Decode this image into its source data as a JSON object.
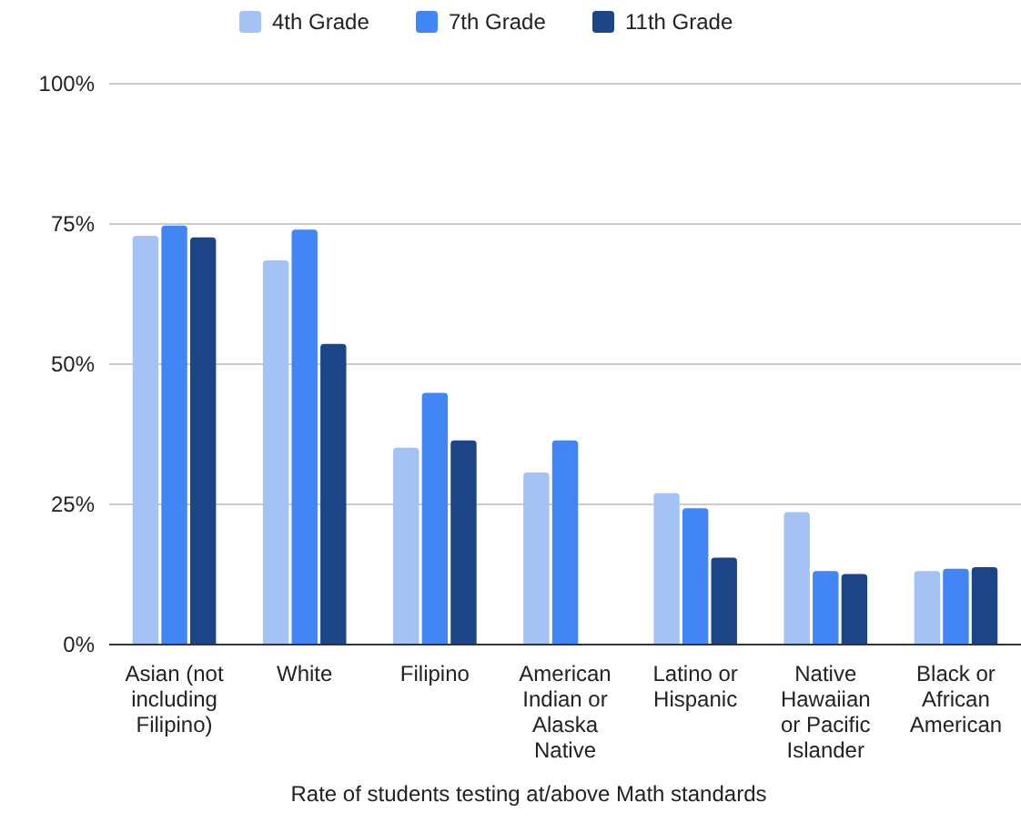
{
  "chart_data": {
    "type": "bar",
    "xlabel": "Rate of students testing at/above Math standards",
    "categories": [
      "Asian (not including Filipino)",
      "White",
      "Filipino",
      "American Indian or Alaska Native",
      "Latino or Hispanic",
      "Native Hawaiian or Pacific Islander",
      "Black or African American"
    ],
    "series": [
      {
        "name": "4th Grade",
        "color": "#a4c2f4",
        "values": [
          72.9,
          68.5,
          35.1,
          30.7,
          27,
          23.6,
          13.1
        ]
      },
      {
        "name": "7th Grade",
        "color": "#4285f4",
        "values": [
          74.7,
          74,
          44.9,
          36.4,
          24.3,
          13.1,
          13.5
        ]
      },
      {
        "name": "11th Grade",
        "color": "#1c4587",
        "values": [
          72.6,
          53.6,
          36.4,
          null,
          15.5,
          12.6,
          13.8
        ]
      }
    ],
    "ylim": [
      0,
      100
    ],
    "yticks": [
      {
        "value": 0,
        "label": "0%"
      },
      {
        "value": 25,
        "label": "25%"
      },
      {
        "value": 50,
        "label": "50%"
      },
      {
        "value": 75,
        "label": "75%"
      },
      {
        "value": 100,
        "label": "100%"
      }
    ],
    "grid": "y",
    "legend": "top"
  }
}
